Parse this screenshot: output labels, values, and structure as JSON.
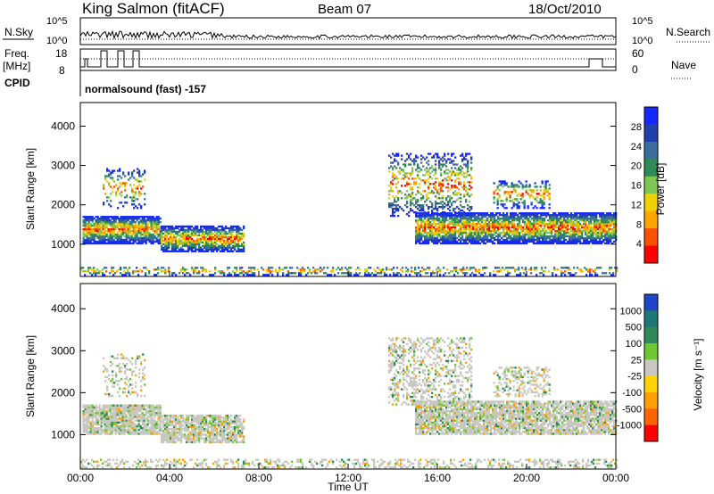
{
  "header": {
    "station": "King Salmon (fitACF)",
    "beam": "Beam 07",
    "date": "18/Oct/2010"
  },
  "summary_panels": {
    "nsky_label": "N.Sky",
    "nsky_ticks": [
      "10^5",
      "10^0"
    ],
    "nsearch_label": "N.Search",
    "nsearch_ticks": [
      "10^5",
      "10^0"
    ],
    "freq_label": "Freq.",
    "freq_unit": "[MHz]",
    "freq_ticks": [
      "18",
      "8"
    ],
    "nave_label": "Nave",
    "nave_ticks": [
      "60",
      "0"
    ],
    "cpid_label": "CPID",
    "cpid_value": "normalsound (fast) -157"
  },
  "chart_data": [
    {
      "type": "heatmap",
      "name": "power",
      "ylabel": "Slant Range [km]",
      "yticks": [
        "4000",
        "3000",
        "2000",
        "1000"
      ],
      "ytick_values": [
        4000,
        3000,
        2000,
        1000
      ],
      "ylim": [
        180,
        4600
      ],
      "colorbar_label": "Power [dB]",
      "colorbar_ticks": [
        "28",
        "24",
        "20",
        "16",
        "12",
        "8",
        "4"
      ],
      "colorscale": [
        "#1428ff",
        "#2040b0",
        "#3a6ea0",
        "#2e8b57",
        "#7ec850",
        "#f0d000",
        "#ffa500",
        "#ff5000",
        "#ff0000"
      ]
    },
    {
      "type": "heatmap",
      "name": "velocity",
      "ylabel": "Slant Range [km]",
      "yticks": [
        "4000",
        "3000",
        "2000",
        "1000"
      ],
      "ytick_values": [
        4000,
        3000,
        2000,
        1000
      ],
      "ylim": [
        180,
        4600
      ],
      "colorbar_label": "Velocity [m s⁻¹]",
      "colorbar_ticks": [
        "1000",
        "500",
        "100",
        "25",
        "-25",
        "-100",
        "-500",
        "-1000"
      ],
      "colorscale": [
        "#1e46c8",
        "#1e7878",
        "#2e8b57",
        "#6ec832",
        "#c8c8c0",
        "#ffd200",
        "#ffa000",
        "#ff6400",
        "#ff0000"
      ]
    }
  ],
  "x_axis": {
    "label": "Time UT",
    "ticks": [
      "00:00",
      "04:00",
      "08:00",
      "12:00",
      "16:00",
      "20:00",
      "00:00"
    ],
    "xlim": [
      0,
      24
    ]
  }
}
